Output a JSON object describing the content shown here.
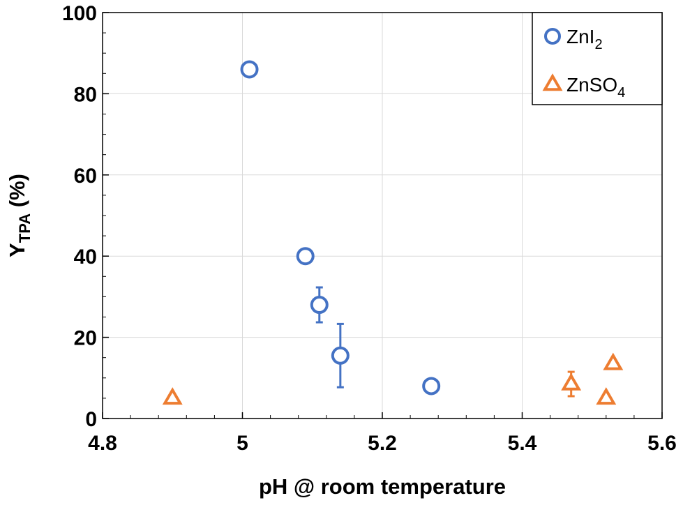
{
  "chart_data": {
    "type": "scatter",
    "xlabel": "pH @ room temperature",
    "ylabel": {
      "main": "Y",
      "sub": "TPA",
      "rest": " (%)"
    },
    "xlim": [
      4.8,
      5.6
    ],
    "ylim": [
      0,
      100
    ],
    "xticks": [
      "4.8",
      "5",
      "5.2",
      "5.4",
      "5.6"
    ],
    "yticks": [
      "0",
      "20",
      "40",
      "60",
      "80",
      "100"
    ],
    "grid": true,
    "legend": "top-right",
    "series": [
      {
        "name": {
          "main": "ZnI",
          "sub": "2"
        },
        "marker": "circle",
        "color": "#4472C4",
        "points": [
          {
            "x": 5.01,
            "y": 86,
            "err": null
          },
          {
            "x": 5.09,
            "y": 40,
            "err": null
          },
          {
            "x": 5.11,
            "y": 28,
            "err": 4.3
          },
          {
            "x": 5.14,
            "y": 15.5,
            "err": 7.8
          },
          {
            "x": 5.27,
            "y": 8,
            "err": null
          }
        ]
      },
      {
        "name": {
          "main": "ZnSO",
          "sub": "4"
        },
        "marker": "triangle",
        "color": "#ED7D31",
        "points": [
          {
            "x": 4.9,
            "y": 5,
            "err": null
          },
          {
            "x": 5.47,
            "y": 8.5,
            "err": 3
          },
          {
            "x": 5.52,
            "y": 5,
            "err": null
          },
          {
            "x": 5.53,
            "y": 13.5,
            "err": null
          }
        ]
      }
    ]
  }
}
